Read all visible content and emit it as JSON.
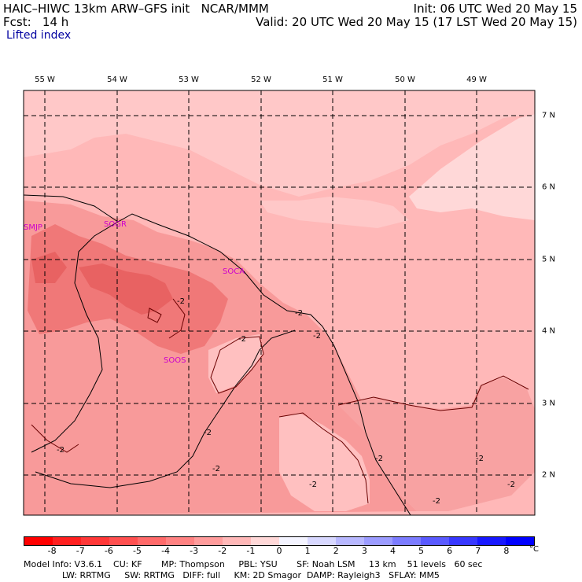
{
  "header": {
    "title_left": "HAIC–HIWC 13km ARW–GFS init   NCAR/MMM",
    "init": "Init: 06 UTC Wed 20 May 15",
    "fcst": "Fcst:   14 h",
    "valid": "Valid: 20 UTC Wed 20 May 15 (17 LST Wed 20 May 15)",
    "field_name": "Lifted index"
  },
  "map": {
    "lon_labels": [
      "55 W",
      "54 W",
      "53 W",
      "52 W",
      "51 W",
      "50 W",
      "49 W"
    ],
    "lat_labels": [
      "7 N",
      "6 N",
      "5 N",
      "4 N",
      "3 N",
      "2 N"
    ],
    "stations": [
      "SMJP",
      "SOGR",
      "SOCA",
      "SOOS"
    ],
    "contour_labels": [
      "-2",
      "-2",
      "-2",
      "-2",
      "-2",
      "-2",
      "-2",
      "-2",
      "-2",
      "-2",
      "-2",
      "-2"
    ],
    "colors": {
      "background_light": "#ffc8c8",
      "minus2": "#ffb0b0",
      "minus3": "#f88c8c",
      "minus4": "#f06a6a",
      "station": "#cc00cc",
      "grid": "#000000"
    }
  },
  "colorbar": {
    "labels": [
      "-8",
      "-7",
      "-6",
      "-5",
      "-4",
      "-3",
      "-2",
      "-1",
      "0",
      "1",
      "2",
      "3",
      "4",
      "5",
      "6",
      "7",
      "8"
    ],
    "unit": "°C",
    "colors": [
      "#ff0000",
      "#ff2020",
      "#ff3838",
      "#ff5050",
      "#ff6a6a",
      "#ff8282",
      "#ff9c9c",
      "#ffb8b8",
      "#ffd8d8",
      "#f4f4ff",
      "#d8d8ff",
      "#b8b8ff",
      "#9c9cff",
      "#7c7cff",
      "#5a5aff",
      "#3838ff",
      "#1818ff",
      "#0000ff"
    ]
  },
  "model_info": {
    "line1": "Model Info: V3.6.1    CU: KF       MP: Thompson     PBL: YSU       SF: Noah LSM     13 km    51 levels   60 sec",
    "line2": "              LW: RRTMG     SW: RRTMG   DIFF: full     KM: 2D Smagor  DAMP: Rayleigh3   SFLAY: MM5"
  }
}
